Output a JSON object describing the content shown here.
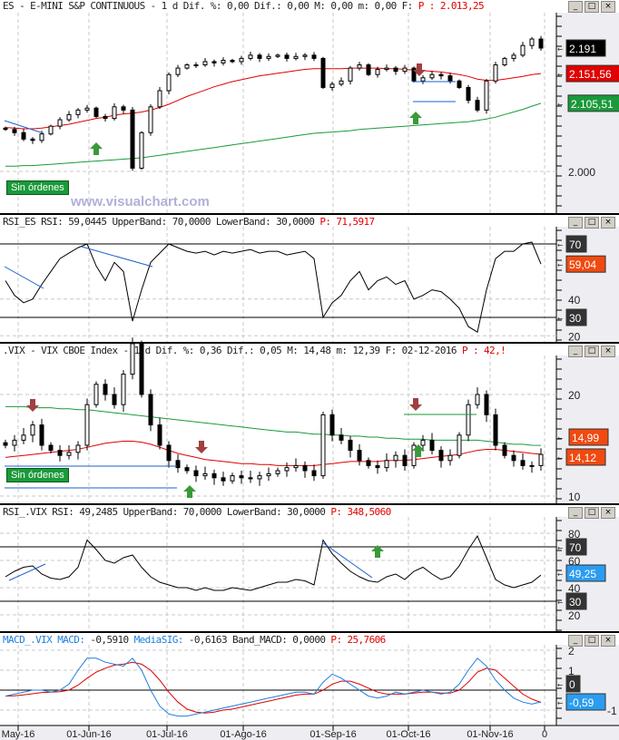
{
  "panels": {
    "es": {
      "name": "ES - E-MINI S&P CONTINUOUS -",
      "stats": "1 d Dif. %: 0,00 Dif.: 0,00 M: 0,00 m: 0,00 F:",
      "p": "P : 2.013,25",
      "tags": {
        "last": "2.191",
        "ma_red": "2.151,56",
        "ma_green": "2.105,51"
      },
      "tick": "2.000",
      "badge": "Sin órdenes",
      "watermark": "www.visualchart.com"
    },
    "rsi_es": {
      "name": "RSI_ES RSI: 59,0445 UpperBand: 70,0000 LowerBand: 30,0000",
      "p": "P: 71,5917",
      "ticks": [
        "40",
        "20"
      ],
      "tags": {
        "upper": "70",
        "value": "59,04",
        "lower": "30"
      }
    },
    "vix": {
      "name": ".VIX - VIX CBOE Index -",
      "stats": "1 d Dif. %: 0,36 Dif.: 0,05 M: 14,48 m: 12,39 F: 02-12-2016",
      "p": "P : 42,!",
      "ticks": [
        "20",
        "10"
      ],
      "tags": {
        "ma_green": "14,99",
        "ma_red": "14,12"
      },
      "badge": "Sin órdenes"
    },
    "rsi_vix": {
      "name": "RSI_.VIX RSI: 49,2485 UpperBand: 70,0000 LowerBand: 30,0000",
      "p": "P: 348,5060",
      "ticks": [
        "80",
        "60",
        "40",
        "20"
      ],
      "tags": {
        "upper": "70",
        "value": "49,25",
        "lower": "30"
      }
    },
    "macd": {
      "name": "MACD_.VIX MACD:",
      "macd_val": "-0,5910",
      "sig_label": "MediaSIG:",
      "rest": "-0,6163 Band_MACD: 0,0000",
      "p": "P: 25,7606",
      "ticks": [
        "2",
        "1",
        "-1"
      ],
      "tags": {
        "zero": "0",
        "value": "-0,59"
      }
    }
  },
  "window_buttons": {
    "min": "_",
    "max": "□",
    "close": "×"
  },
  "colors": {
    "up": "#ffffff",
    "down": "#000000",
    "ma_red": "#e00000",
    "ma_green": "#1a9a3a",
    "trend": "#1e5fd0",
    "tag_orange": "#f04a10",
    "tag_blue": "#2b9cf0",
    "arrow_green": "#3a9a3a",
    "arrow_red": "#a04040"
  },
  "chart_data": [
    {
      "type": "candlestick",
      "title": "ES - E-MINI S&P CONTINUOUS",
      "x_labels": [
        "May-16",
        "01-Jun-16",
        "01-Jul-16",
        "01-Ago-16",
        "01-Sep-16",
        "01-Oct-16",
        "01-Nov-16",
        "0"
      ],
      "ylim": [
        1975,
        2225
      ],
      "close": [
        2065,
        2060,
        2050,
        2048,
        2058,
        2070,
        2080,
        2088,
        2095,
        2098,
        2085,
        2082,
        2100,
        2095,
        2005,
        2060,
        2100,
        2125,
        2150,
        2160,
        2165,
        2165,
        2170,
        2168,
        2172,
        2170,
        2175,
        2180,
        2175,
        2178,
        2180,
        2175,
        2178,
        2180,
        2175,
        2130,
        2135,
        2140,
        2160,
        2165,
        2150,
        2158,
        2160,
        2155,
        2160,
        2140,
        2145,
        2150,
        2148,
        2140,
        2130,
        2110,
        2095,
        2140,
        2165,
        2175,
        2180,
        2195,
        2205,
        2191
      ],
      "ma_red": [
        2068,
        2067,
        2066,
        2066,
        2067,
        2069,
        2071,
        2073,
        2076,
        2079,
        2082,
        2084,
        2087,
        2089,
        2090,
        2092,
        2095,
        2099,
        2104,
        2110,
        2116,
        2121,
        2126,
        2131,
        2135,
        2139,
        2142,
        2145,
        2148,
        2150,
        2152,
        2154,
        2156,
        2158,
        2159,
        2159,
        2159,
        2159,
        2160,
        2160,
        2160,
        2160,
        2159,
        2159,
        2158,
        2157,
        2156,
        2155,
        2154,
        2152,
        2150,
        2147,
        2143,
        2141,
        2141,
        2143,
        2145,
        2147,
        2150,
        2151.56
      ],
      "ma_green": [
        2008,
        2008,
        2009,
        2009,
        2010,
        2011,
        2012,
        2013,
        2014,
        2015,
        2016,
        2017,
        2018,
        2019,
        2020,
        2021,
        2023,
        2025,
        2027,
        2029,
        2031,
        2033,
        2035,
        2037,
        2039,
        2041,
        2043,
        2045,
        2047,
        2049,
        2051,
        2053,
        2055,
        2057,
        2059,
        2060,
        2061,
        2062,
        2063,
        2065,
        2066,
        2067,
        2068,
        2069,
        2070,
        2071,
        2072,
        2073,
        2074,
        2075,
        2076,
        2077,
        2079,
        2081,
        2084,
        2088,
        2092,
        2096,
        2101,
        2105.51
      ]
    },
    {
      "type": "line",
      "title": "RSI_ES",
      "ylim": [
        15,
        80
      ],
      "bands": [
        70,
        30
      ],
      "values": [
        50,
        42,
        38,
        40,
        48,
        55,
        62,
        65,
        68,
        70,
        58,
        50,
        60,
        55,
        28,
        45,
        60,
        65,
        70,
        68,
        66,
        65,
        66,
        64,
        66,
        65,
        66,
        67,
        65,
        66,
        66,
        64,
        65,
        66,
        62,
        30,
        38,
        42,
        50,
        55,
        45,
        50,
        52,
        48,
        50,
        40,
        42,
        45,
        44,
        40,
        35,
        25,
        22,
        45,
        62,
        66,
        66,
        70,
        71,
        59.04
      ]
    },
    {
      "type": "candlestick",
      "title": ".VIX",
      "ylim": [
        9,
        26
      ],
      "close": [
        15,
        15.5,
        16,
        17,
        15,
        14.5,
        14,
        14.3,
        15,
        19,
        21,
        20,
        19,
        22,
        25,
        20,
        17,
        15,
        13.5,
        12.8,
        12.5,
        12,
        12.2,
        11.8,
        11.5,
        12,
        11.8,
        11.7,
        12,
        12.2,
        12.5,
        12.8,
        13,
        12.5,
        12,
        18,
        16,
        15.5,
        14.5,
        13.5,
        13,
        12.8,
        13.5,
        14,
        13,
        15,
        15.5,
        14.5,
        13.5,
        14,
        16,
        19,
        20,
        18,
        15,
        14,
        13.5,
        13,
        13,
        14.1
      ],
      "ma_red": [
        13.8,
        13.9,
        14,
        14.1,
        14.2,
        14.3,
        14.4,
        14.5,
        14.6,
        14.8,
        15,
        15.2,
        15.3,
        15.4,
        15.4,
        15.3,
        15.1,
        14.8,
        14.5,
        14.2,
        14,
        13.8,
        13.6,
        13.5,
        13.4,
        13.3,
        13.2,
        13.2,
        13.1,
        13.1,
        13,
        13,
        13,
        13,
        13,
        13.1,
        13.2,
        13.3,
        13.4,
        13.4,
        13.4,
        13.4,
        13.5,
        13.5,
        13.5,
        13.6,
        13.7,
        13.8,
        13.9,
        14,
        14.1,
        14.3,
        14.5,
        14.6,
        14.6,
        14.5,
        14.4,
        14.3,
        14.2,
        14.12
      ],
      "ma_green": [
        18.8,
        18.8,
        18.8,
        18.7,
        18.7,
        18.7,
        18.6,
        18.6,
        18.5,
        18.5,
        18.4,
        18.3,
        18.2,
        18.1,
        18,
        17.9,
        17.8,
        17.7,
        17.6,
        17.5,
        17.4,
        17.3,
        17.2,
        17.1,
        17,
        16.9,
        16.8,
        16.7,
        16.6,
        16.5,
        16.4,
        16.3,
        16.3,
        16.2,
        16.1,
        16.1,
        16,
        16,
        15.9,
        15.9,
        15.8,
        15.8,
        15.7,
        15.7,
        15.6,
        15.6,
        15.6,
        15.5,
        15.5,
        15.5,
        15.5,
        15.5,
        15.5,
        15.4,
        15.3,
        15.2,
        15.1,
        15.1,
        15,
        14.99
      ]
    },
    {
      "type": "line",
      "title": "RSI_.VIX",
      "ylim": [
        10,
        90
      ],
      "bands": [
        70,
        30
      ],
      "values": [
        48,
        52,
        55,
        56,
        50,
        47,
        46,
        48,
        55,
        75,
        68,
        60,
        58,
        62,
        64,
        55,
        48,
        44,
        42,
        40,
        40,
        38,
        40,
        38,
        38,
        40,
        39,
        38,
        40,
        42,
        44,
        44,
        46,
        45,
        42,
        75,
        65,
        58,
        52,
        48,
        45,
        44,
        48,
        50,
        46,
        52,
        55,
        50,
        46,
        48,
        56,
        68,
        78,
        62,
        46,
        42,
        40,
        42,
        44,
        49.25
      ]
    },
    {
      "type": "line",
      "title": "MACD_.VIX",
      "ylim": [
        -1.5,
        2.2
      ],
      "zero_band": 0,
      "series": [
        {
          "name": "MACD",
          "values": [
            -0.3,
            -0.2,
            -0.1,
            0,
            0,
            -0.1,
            0,
            0.3,
            1,
            1.6,
            1.6,
            1.4,
            1.3,
            1.2,
            1.6,
            1,
            0,
            -0.8,
            -1.2,
            -1.3,
            -1.3,
            -1.2,
            -1.1,
            -1.0,
            -0.9,
            -0.8,
            -0.7,
            -0.6,
            -0.5,
            -0.4,
            -0.3,
            -0.2,
            -0.1,
            -0.1,
            -0.2,
            0.4,
            0.8,
            0.6,
            0.3,
            0,
            -0.3,
            -0.4,
            -0.3,
            -0.1,
            -0.2,
            -0.1,
            0,
            -0.1,
            -0.2,
            -0.1,
            0.3,
            1,
            1.6,
            1.2,
            0.5,
            0,
            -0.4,
            -0.6,
            -0.7,
            -0.59
          ]
        },
        {
          "name": "MediaSIG",
          "values": [
            -0.3,
            -0.28,
            -0.24,
            -0.18,
            -0.12,
            -0.1,
            -0.08,
            0,
            0.25,
            0.6,
            0.9,
            1.1,
            1.25,
            1.3,
            1.4,
            1.3,
            1.0,
            0.5,
            -0.1,
            -0.6,
            -0.95,
            -1.1,
            -1.15,
            -1.1,
            -1.0,
            -0.95,
            -0.85,
            -0.75,
            -0.65,
            -0.55,
            -0.45,
            -0.35,
            -0.25,
            -0.2,
            -0.2,
            0,
            0.3,
            0.45,
            0.45,
            0.3,
            0.1,
            -0.1,
            -0.2,
            -0.2,
            -0.2,
            -0.15,
            -0.1,
            -0.1,
            -0.15,
            -0.15,
            0,
            0.4,
            0.9,
            1.1,
            1.0,
            0.6,
            0.2,
            -0.2,
            -0.45,
            -0.62
          ]
        }
      ]
    }
  ]
}
